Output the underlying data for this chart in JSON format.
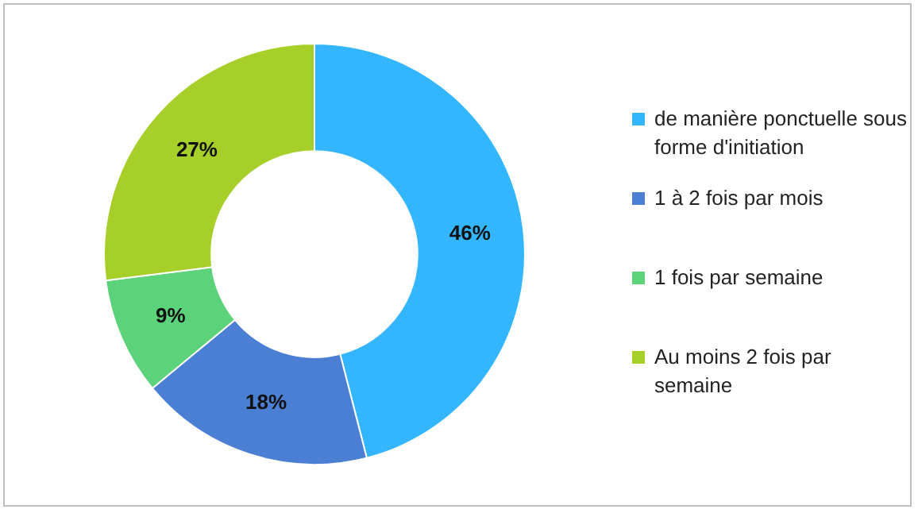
{
  "chart_data": {
    "type": "donut",
    "categories": [
      "de manière ponctuelle sous forme d'initiation",
      "1 à 2 fois par mois",
      "1 fois par semaine",
      "Au moins 2 fois par semaine"
    ],
    "values": [
      46,
      18,
      9,
      27
    ],
    "colors": [
      "#33b5ff",
      "#4a7fd4",
      "#5cd27a",
      "#a6cf2a"
    ],
    "value_labels": [
      "46%",
      "18%",
      "9%",
      "27%"
    ],
    "legend": "right"
  }
}
